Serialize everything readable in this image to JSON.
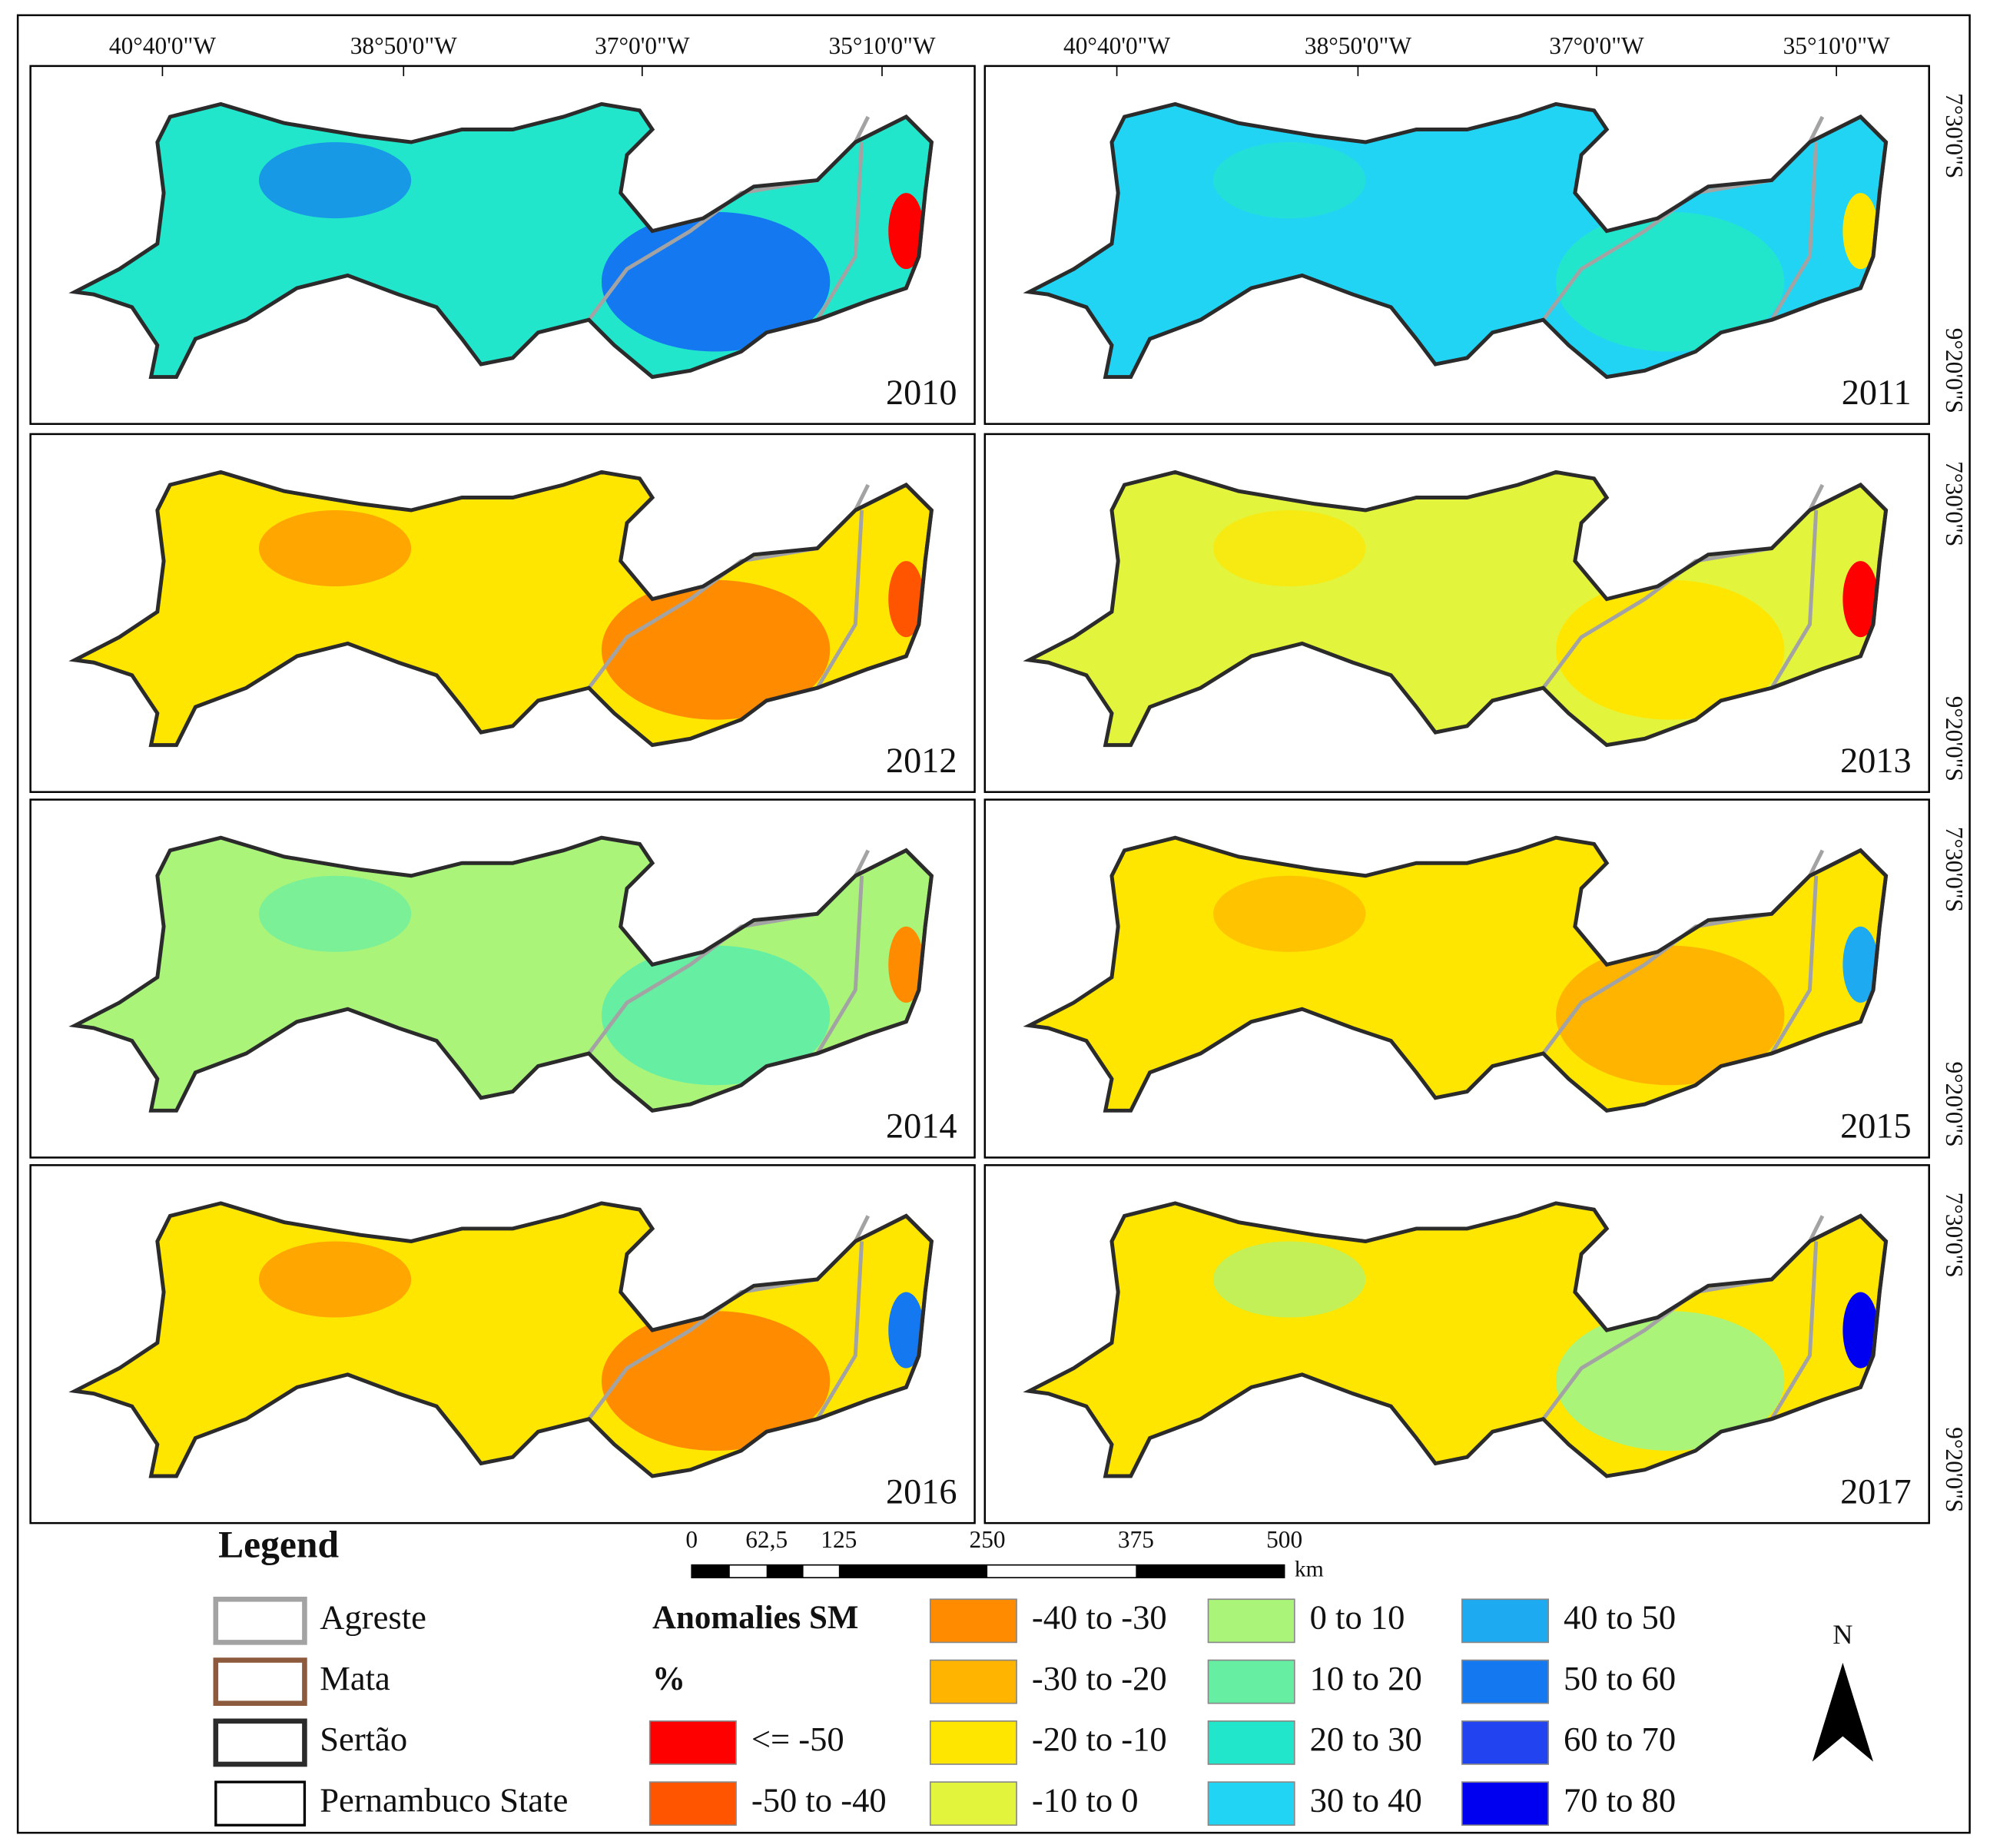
{
  "top_labels": [
    "40°40'0\"W",
    "38°50'0\"W",
    "37°0'0\"W",
    "35°10'0\"W"
  ],
  "side_labels": [
    "7°30'0\"S",
    "9°20'0\"S"
  ],
  "panels": [
    "2010",
    "2011",
    "2012",
    "2013",
    "2014",
    "2015",
    "2016",
    "2017"
  ],
  "legend": {
    "title": "Legend",
    "regions": [
      {
        "label": "Agreste",
        "color": "#a3a3a3"
      },
      {
        "label": "Mata",
        "color": "#8e5a3e"
      },
      {
        "label": "Sertão",
        "color": "#2b2b2b"
      },
      {
        "label": "Pernambuco State",
        "color": "#000000"
      }
    ],
    "classes_title": "Anomalies SM",
    "classes_unit": "%",
    "classes": [
      {
        "label": "<= -50",
        "color": "#ff0000"
      },
      {
        "label": "-50 to -40",
        "color": "#ff5500"
      },
      {
        "label": "-40 to -30",
        "color": "#ff8c00"
      },
      {
        "label": "-30 to -20",
        "color": "#ffb400"
      },
      {
        "label": "-20 to -10",
        "color": "#ffe600"
      },
      {
        "label": "-10 to 0",
        "color": "#e3f43c"
      },
      {
        "label": "0 to 10",
        "color": "#aaf47a"
      },
      {
        "label": "10 to 20",
        "color": "#66eea2"
      },
      {
        "label": "20 to 30",
        "color": "#22e6cc"
      },
      {
        "label": "30 to 40",
        "color": "#22d4f4"
      },
      {
        "label": "40 to 50",
        "color": "#1eaaf0"
      },
      {
        "label": "50 to 60",
        "color": "#1478f0"
      },
      {
        "label": "60 to 70",
        "color": "#2244f0"
      },
      {
        "label": "70 to 80",
        "color": "#0000f0"
      }
    ]
  },
  "scale_bar": {
    "labels": [
      "0",
      "62,5",
      "125",
      "250",
      "375",
      "500"
    ],
    "unit": "km"
  },
  "north": "N"
}
